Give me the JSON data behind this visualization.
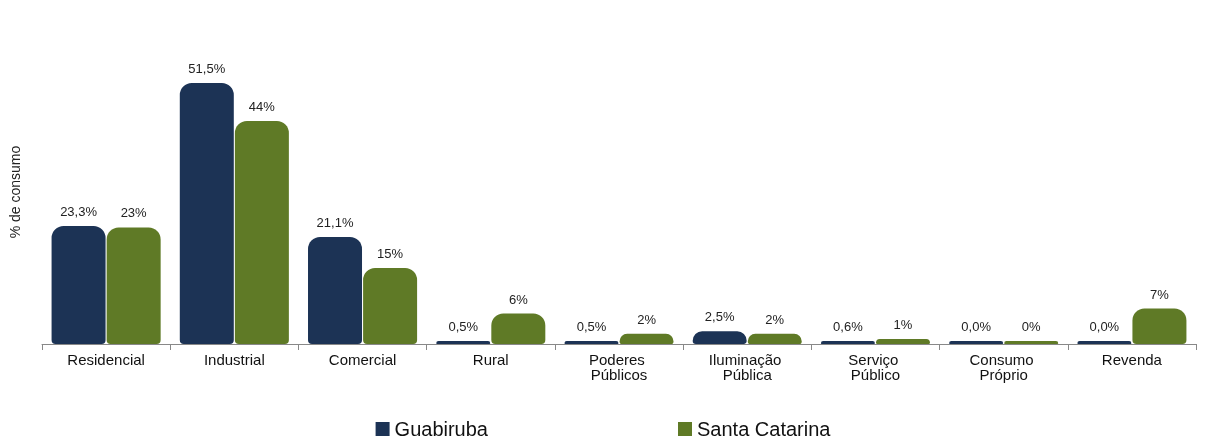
{
  "chart_data": {
    "type": "bar",
    "ylabel": "% de consumo",
    "categories": [
      "Residencial",
      "Industrial",
      "Comercial",
      "Rural",
      "Poderes Públicos",
      "Iluminação Pública",
      "Serviço Público",
      "Consumo Próprio",
      "Revenda"
    ],
    "series": [
      {
        "name": "Guabiruba",
        "color": "#1c3355",
        "values": [
          23.3,
          51.5,
          21.1,
          0.5,
          0.5,
          2.5,
          0.6,
          0.0,
          0.0
        ],
        "value_labels": [
          "23,3%",
          "51,5%",
          "21,1%",
          "0,5%",
          "0,5%",
          "2,5%",
          "0,6%",
          "0,0%",
          "0,0%"
        ]
      },
      {
        "name": "Santa Catarina",
        "color": "#5f7a26",
        "values": [
          23,
          44,
          15,
          6,
          2,
          2,
          1,
          0,
          7
        ],
        "value_labels": [
          "23%",
          "44%",
          "15%",
          "6%",
          "2%",
          "2%",
          "1%",
          "0%",
          "7%"
        ]
      }
    ],
    "legend": "bottom",
    "grid": false
  }
}
